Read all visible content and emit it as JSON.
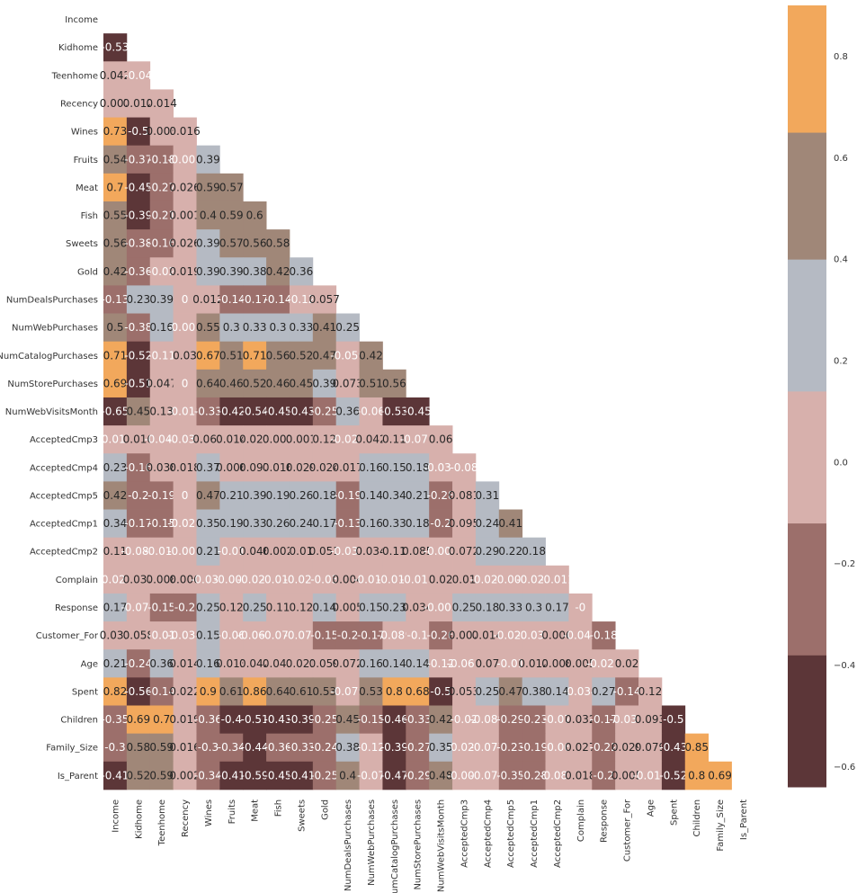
{
  "chart_data": {
    "type": "heatmap",
    "title": "",
    "mask": "upper-triangle-including-diagonal",
    "variables": [
      "Income",
      "Kidhome",
      "Teenhome",
      "Recency",
      "Wines",
      "Fruits",
      "Meat",
      "Fish",
      "Sweets",
      "Gold",
      "NumDealsPurchases",
      "NumWebPurchases",
      "NumCatalogPurchases",
      "NumStorePurchases",
      "NumWebVisitsMonth",
      "AcceptedCmp3",
      "AcceptedCmp4",
      "AcceptedCmp5",
      "AcceptedCmp1",
      "AcceptedCmp2",
      "Complain",
      "Response",
      "Customer_For",
      "Age",
      "Spent",
      "Children",
      "Family_Size",
      "Is_Parent"
    ],
    "value_labels": [
      [],
      [
        "-0.53"
      ],
      [
        "0.042",
        "-0.04"
      ],
      [
        "0.007",
        "0.012",
        "0.014"
      ],
      [
        "0.73",
        "-0.5",
        "0.003",
        "0.016"
      ],
      [
        "0.54",
        "-0.37",
        "-0.18",
        "-0.005",
        "0.39"
      ],
      [
        "0.7",
        "-0.45",
        "-0.27",
        "0.026",
        "0.59",
        "0.57"
      ],
      [
        "0.55",
        "-0.39",
        "-0.21",
        "0.001",
        "0.4",
        "0.59",
        "0.6"
      ],
      [
        "0.56",
        "-0.38",
        "-0.16",
        "0.026",
        "0.39",
        "0.57",
        "0.56",
        "0.58"
      ],
      [
        "0.42",
        "-0.36",
        "-0.02",
        "0.019",
        "0.39",
        "0.39",
        "0.38",
        "0.42",
        "0.36"
      ],
      [
        "-0.13",
        "0.23",
        "0.39",
        "0",
        "0.012",
        "-0.14",
        "-0.17",
        "-0.14",
        "-0.12",
        "0.057"
      ],
      [
        "0.5",
        "-0.38",
        "0.16",
        "-0.005",
        "0.55",
        "0.3",
        "0.33",
        "0.3",
        "0.33",
        "0.41",
        "0.25"
      ],
      [
        "0.71",
        "-0.52",
        "-0.11",
        "0.03",
        "0.67",
        "0.51",
        "0.71",
        "0.56",
        "0.52",
        "0.47",
        "-0.059",
        "0.42"
      ],
      [
        "0.69",
        "-0.51",
        "0.047",
        "0",
        "0.64",
        "0.46",
        "0.52",
        "0.46",
        "0.45",
        "0.39",
        "0.073",
        "0.51",
        "0.56"
      ],
      [
        "-0.65",
        "0.45",
        "0.13",
        "-0.018",
        "-0.33",
        "-0.42",
        "-0.54",
        "-0.45",
        "-0.43",
        "-0.25",
        "0.36",
        "-0.06",
        "-0.53",
        "-0.45"
      ],
      [
        "-0.011",
        "0.016",
        "-0.043",
        "-0.032",
        "0.061",
        "0.014",
        "0.021",
        "0.001",
        "0.001",
        "0.12",
        "-0.023",
        "0.042",
        "0.11",
        "-0.071",
        "0.06"
      ],
      [
        "0.23",
        "-0.16",
        "0.038",
        "0.018",
        "0.37",
        "0.006",
        "0.097",
        "0.016",
        "0.029",
        "0.024",
        "0.017",
        "0.16",
        "0.15",
        "0.18",
        "-0.031",
        "-0.08"
      ],
      [
        "0.42",
        "-0.2",
        "-0.19",
        "0",
        "0.47",
        "0.21",
        "0.39",
        "0.19",
        "0.26",
        "0.18",
        "-0.19",
        "0.14",
        "0.34",
        "0.21",
        "-0.28",
        "0.081",
        "0.31"
      ],
      [
        "0.34",
        "-0.17",
        "-0.15",
        "-0.021",
        "0.35",
        "0.19",
        "0.33",
        "0.26",
        "0.24",
        "0.17",
        "-0.13",
        "0.16",
        "0.33",
        "0.18",
        "-0.2",
        "0.095",
        "0.24",
        "0.41"
      ],
      [
        "0.11",
        "-0.082",
        "-0.016",
        "-0.001",
        "0.21",
        "-0.01",
        "0.046",
        "0.002",
        "0.01",
        "0.051",
        "-0.039",
        "0.034",
        "0.11",
        "0.085",
        "-0.008",
        "0.072",
        "0.29",
        "0.22",
        "0.18"
      ],
      [
        "-0.027",
        "0.037",
        "0.008",
        "0.006",
        "-0.037",
        "-0.003",
        "-0.021",
        "-0.019",
        "-0.021",
        "-0.03",
        "0.004",
        "-0.014",
        "-0.019",
        "-0.013",
        "0.02",
        "0.01",
        "-0.027",
        "-0.008",
        "-0.025",
        "-0.011"
      ],
      [
        "0.17",
        "-0.078",
        "-0.15",
        "-0.2",
        "0.25",
        "0.12",
        "0.25",
        "0.11",
        "0.12",
        "0.14",
        "0.005",
        "0.15",
        "0.23",
        "0.034",
        "-0.005",
        "0.25",
        "0.18",
        "0.33",
        "0.3",
        "0.17",
        "-0"
      ],
      [
        "0.031",
        "0.058",
        "-0.01",
        "-0.034",
        "0.15",
        "-0.06",
        "-0.069",
        "-0.079",
        "-0.077",
        "-0.15",
        "-0.2",
        "-0.17",
        "-0.089",
        "-0.1",
        "-0.26",
        "0.007",
        "0.014",
        "-0.023",
        "-0.037",
        "0.006",
        "-0.042",
        "-0.18"
      ],
      [
        "0.21",
        "-0.24",
        "0.36",
        "0.014",
        "0.16",
        "0.013",
        "0.042",
        "0.041",
        "0.021",
        "0.059",
        "0.072",
        "0.16",
        "0.14",
        "0.14",
        "-0.12",
        "-0.061",
        "0.07",
        "-0.01",
        "0.012",
        "0.008",
        "0.005",
        "-0.021",
        "0.02"
      ],
      [
        "0.82",
        "-0.56",
        "-0.14",
        "0.022",
        "0.9",
        "0.61",
        "0.86",
        "0.64",
        "0.61",
        "0.53",
        "-0.079",
        "0.53",
        "0.8",
        "0.68",
        "-0.5",
        "0.053",
        "0.25",
        "0.47",
        "0.38",
        "0.14",
        "-0.034",
        "0.27",
        "-0.14",
        "0.12"
      ],
      [
        "-0.35",
        "0.69",
        "0.7",
        "0.019",
        "-0.36",
        "-0.4",
        "-0.51",
        "-0.43",
        "-0.39",
        "-0.25",
        "0.45",
        "-0.15",
        "-0.46",
        "-0.33",
        "0.42",
        "-0.02",
        "-0.089",
        "-0.29",
        "-0.23",
        "-0.07",
        "0.032",
        "-0.17",
        "-0.035",
        "0.093",
        "-0.5"
      ],
      [
        "-0.3",
        "0.58",
        "0.59",
        "0.016",
        "-0.3",
        "-0.34",
        "-0.44",
        "-0.36",
        "-0.33",
        "-0.24",
        "0.38",
        "-0.12",
        "-0.39",
        "-0.27",
        "0.35",
        "-0.026",
        "-0.077",
        "-0.23",
        "-0.19",
        "-0.06",
        "0.027",
        "-0.22",
        "0.029",
        "0.079",
        "-0.43",
        "0.85"
      ],
      [
        "-0.41",
        "0.52",
        "0.59",
        "0.002",
        "-0.34",
        "-0.41",
        "-0.59",
        "-0.45",
        "-0.41",
        "-0.25",
        "0.4",
        "-0.07",
        "-0.47",
        "-0.29",
        "0.48",
        "-0.006",
        "-0.078",
        "-0.35",
        "-0.28",
        "-0.082",
        "0.018",
        "-0.2",
        "0.005",
        "-0.011",
        "-0.52",
        "0.8",
        "0.69"
      ]
    ],
    "colorbar": {
      "bins": [
        {
          "min": -0.64,
          "max": -0.38,
          "color": "#5c3638"
        },
        {
          "min": -0.38,
          "max": -0.12,
          "color": "#9c6f6b"
        },
        {
          "min": -0.12,
          "max": 0.14,
          "color": "#d7b0ac"
        },
        {
          "min": 0.14,
          "max": 0.4,
          "color": "#b5bac3"
        },
        {
          "min": 0.4,
          "max": 0.65,
          "color": "#a08778"
        },
        {
          "min": 0.65,
          "max": 0.9,
          "color": "#f2a85c"
        }
      ],
      "ticks": [
        -0.6,
        -0.4,
        -0.2,
        0.0,
        0.2,
        0.4,
        0.6,
        0.8
      ],
      "tick_labels": [
        "−0.6",
        "−0.4",
        "−0.2",
        "0.0",
        "0.2",
        "0.4",
        "0.6",
        "0.8"
      ]
    },
    "text_colors": {
      "dark": "#262626",
      "light": "#ffffff"
    },
    "dark_text_above": 0.0
  }
}
